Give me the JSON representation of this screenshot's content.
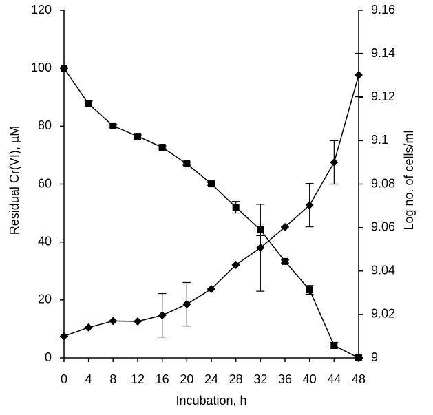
{
  "chart_data": {
    "type": "line",
    "x_label": "Incubation, h",
    "y_label": "Residual Cr(VI), µM",
    "y2_label": "Log no. of cells/ml",
    "x": [
      0,
      4,
      8,
      12,
      16,
      20,
      24,
      28,
      32,
      36,
      40,
      44,
      48
    ],
    "xlim": [
      0,
      48
    ],
    "xticks": [
      0,
      4,
      8,
      12,
      16,
      20,
      24,
      28,
      32,
      36,
      40,
      44,
      48
    ],
    "ylim": [
      0,
      120
    ],
    "yticks": [
      0,
      20,
      40,
      60,
      80,
      100,
      120
    ],
    "y2lim": [
      9,
      9.16
    ],
    "y2ticks": [
      9,
      9.02,
      9.04,
      9.06,
      9.08,
      9.1,
      9.12,
      9.14,
      9.16
    ],
    "series": [
      {
        "color": "#000000",
        "marker": "square",
        "values": [
          100,
          87.7,
          80.1,
          76.5,
          72.7,
          67,
          60.1,
          52,
          44.2,
          33.3,
          23.5,
          4.3,
          0
        ],
        "errors": [
          0,
          1,
          0.5,
          0.5,
          0.5,
          0.5,
          0.5,
          2,
          2,
          0.5,
          1.5,
          1,
          0
        ]
      },
      {
        "color": "#000000",
        "marker": "diamond",
        "axis": "y2",
        "values": [
          9.01,
          9.014,
          9.017,
          9.0168,
          9.0196,
          9.0247,
          9.0317,
          9.0428,
          9.0507,
          9.0602,
          9.0703,
          9.09,
          9.1302
        ],
        "errors": [
          0,
          0,
          0,
          0,
          0.01,
          0.01,
          0,
          0,
          0.02,
          0,
          0.01,
          0.01,
          0.01
        ]
      }
    ]
  }
}
